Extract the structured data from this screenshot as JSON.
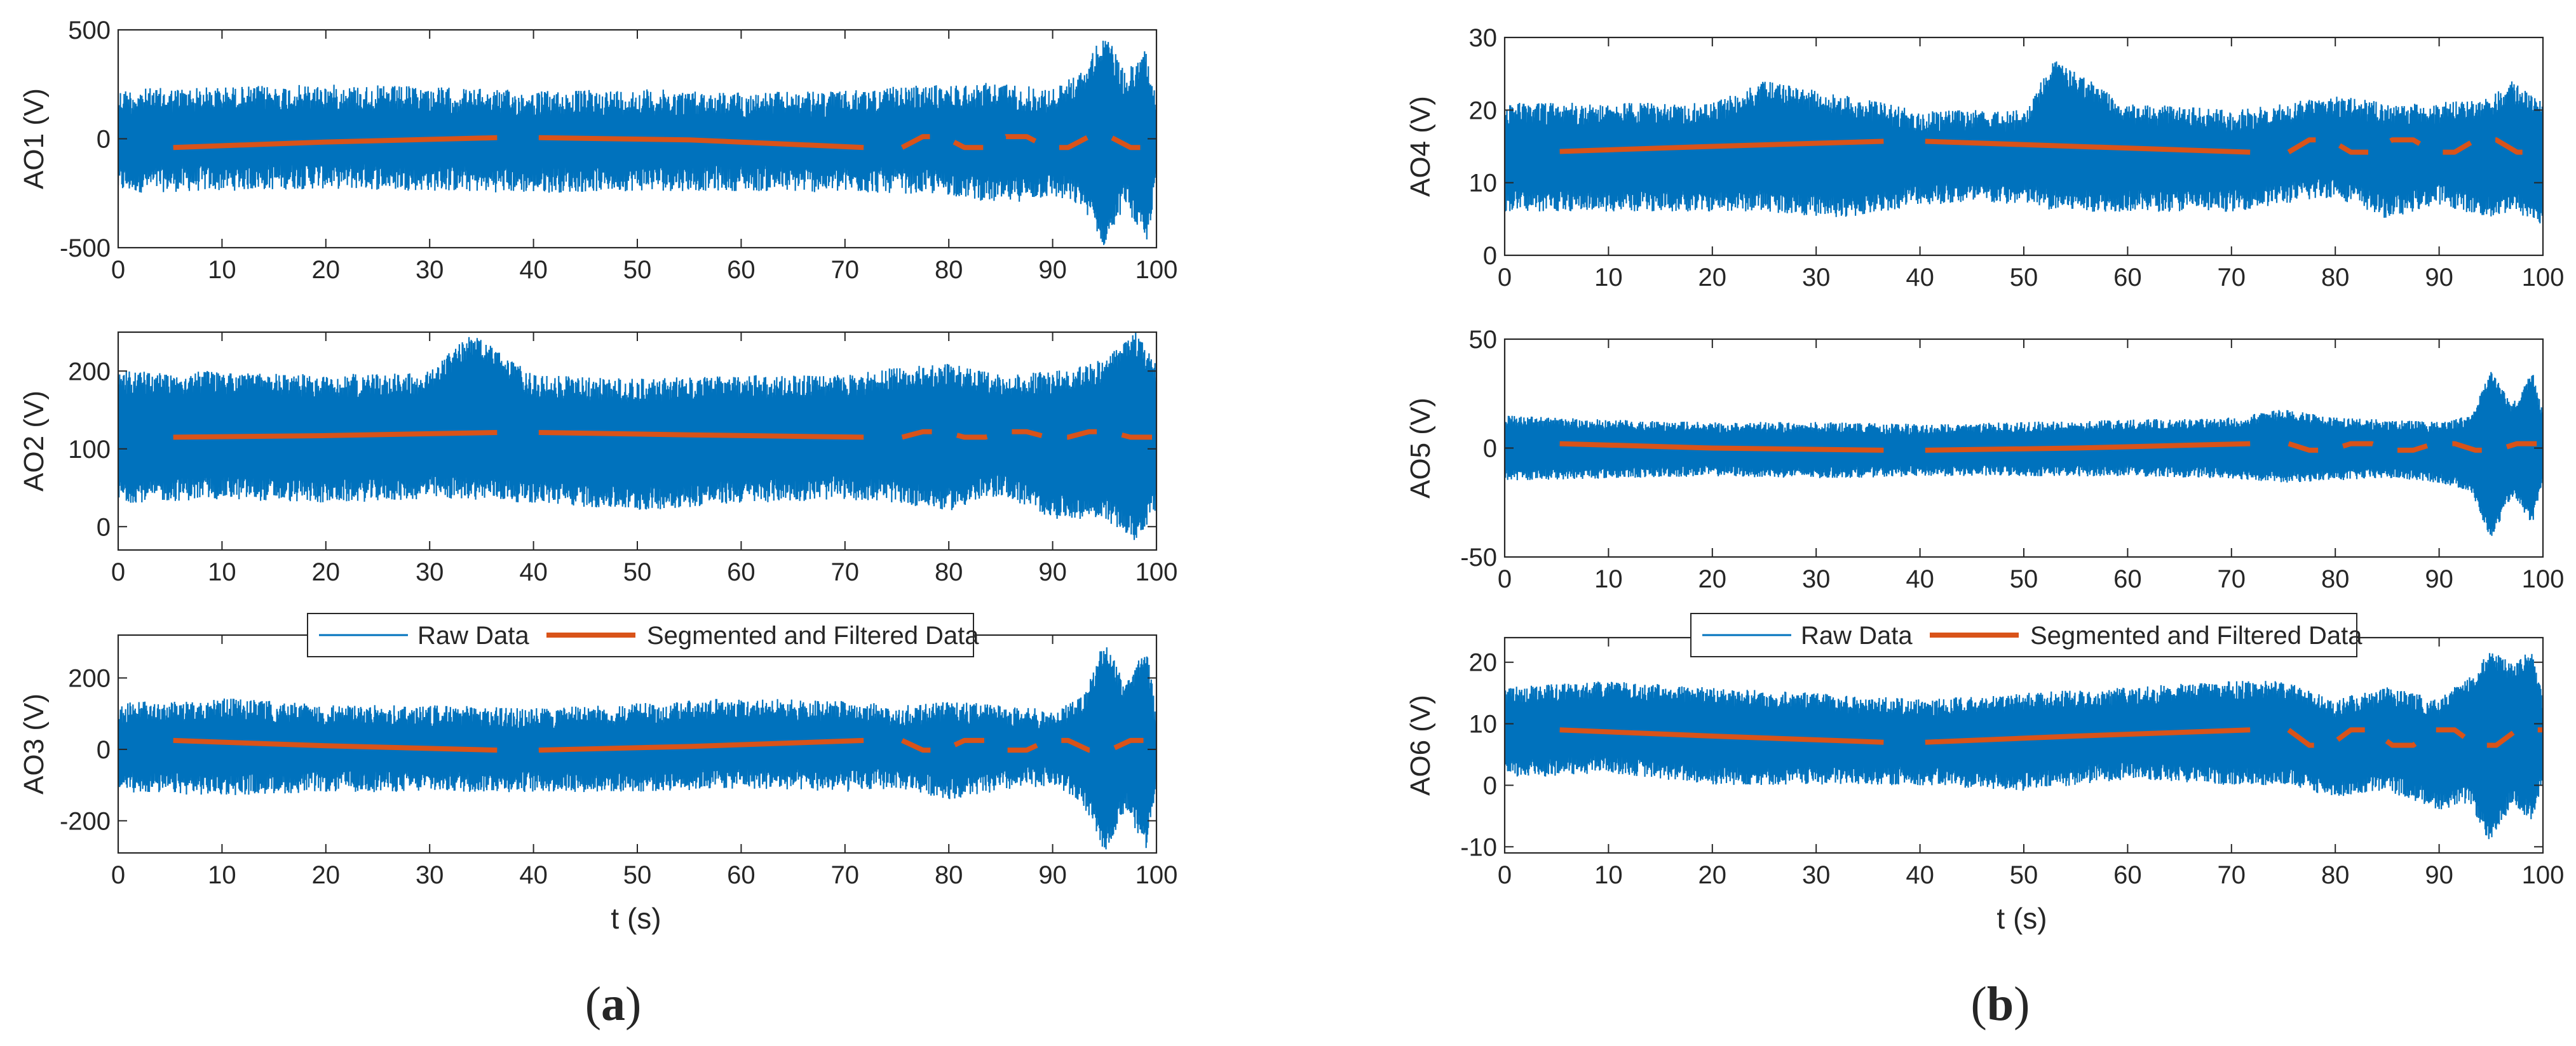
{
  "colors": {
    "raw": "#0072BD",
    "filtered": "#D95319",
    "axis": "#262626",
    "background": "#ffffff"
  },
  "figure": {
    "captions": [
      {
        "open": "(",
        "letter": "a",
        "close": ")"
      },
      {
        "open": "(",
        "letter": "b",
        "close": ")"
      }
    ]
  },
  "legend": {
    "raw_label": "Raw Data",
    "filtered_label": "Segmented and Filtered Data"
  },
  "xlabel": "t (s)",
  "chart_data": [
    {
      "type": "line",
      "ylabel": "AO1 (V)",
      "xlim": [
        0,
        100
      ],
      "ylim": [
        -500,
        500
      ],
      "xticks": [
        "0",
        "10",
        "20",
        "30",
        "40",
        "50",
        "60",
        "70",
        "80",
        "90",
        "100"
      ],
      "yticks": [
        "500",
        "0",
        "-500"
      ],
      "yticks_values": [
        500,
        0,
        -500
      ],
      "raw_envelope": {
        "x": [
          0,
          10,
          20,
          30,
          40,
          50,
          60,
          70,
          75,
          80,
          85,
          90,
          93,
          95,
          97,
          99,
          100
        ],
        "upper": [
          230,
          240,
          250,
          240,
          220,
          230,
          215,
          220,
          240,
          250,
          260,
          230,
          320,
          500,
          300,
          420,
          200
        ],
        "lower": [
          -250,
          -240,
          -230,
          -240,
          -250,
          -240,
          -240,
          -250,
          -250,
          -260,
          -300,
          -270,
          -320,
          -500,
          -300,
          -500,
          -220
        ],
        "noise": 60
      },
      "filtered_segments": [
        {
          "x": [
            5.3,
            20,
            36.5
          ],
          "y": [
            -40,
            -15,
            5
          ]
        },
        {
          "x": [
            40.5,
            55,
            71.8
          ],
          "y": [
            5,
            -5,
            -40
          ]
        },
        {
          "x": [
            75.5,
            77.5,
            79.5,
            81.5,
            83.5,
            85.5,
            87.5,
            89.5,
            91.5,
            93.5,
            95.5,
            97.5,
            99.5,
            100
          ],
          "y": [
            -40,
            10,
            10,
            -40,
            -40,
            10,
            10,
            -40,
            -40,
            10,
            10,
            -40,
            -40,
            -40
          ]
        }
      ]
    },
    {
      "type": "line",
      "ylabel": "AO2 (V)",
      "xlim": [
        0,
        100
      ],
      "ylim": [
        -30,
        250
      ],
      "xticks": [
        "0",
        "10",
        "20",
        "30",
        "40",
        "50",
        "60",
        "70",
        "80",
        "90",
        "100"
      ],
      "yticks": [
        "200",
        "100",
        "0"
      ],
      "yticks_values": [
        200,
        100,
        0
      ],
      "raw_envelope": {
        "x": [
          0,
          10,
          20,
          30,
          34,
          40,
          50,
          60,
          70,
          75,
          80,
          85,
          90,
          95,
          98,
          100
        ],
        "upper": [
          200,
          200,
          195,
          200,
          250,
          195,
          190,
          195,
          195,
          205,
          210,
          195,
          200,
          215,
          250,
          210
        ],
        "lower": [
          30,
          35,
          30,
          35,
          35,
          30,
          20,
          30,
          35,
          30,
          20,
          40,
          10,
          10,
          -20,
          20
        ],
        "noise": 15
      },
      "filtered_segments": [
        {
          "x": [
            5.3,
            20,
            36.5
          ],
          "y": [
            115,
            117,
            121
          ]
        },
        {
          "x": [
            40.5,
            55,
            71.8
          ],
          "y": [
            121,
            118,
            115
          ]
        },
        {
          "x": [
            75.5,
            77.5,
            79.5,
            81.5,
            83.5,
            85.5,
            87.5,
            89.5,
            91.5,
            93.5,
            95.5,
            97.5,
            99.5,
            100
          ],
          "y": [
            115,
            122,
            122,
            115,
            115,
            122,
            122,
            115,
            115,
            122,
            122,
            115,
            115,
            115
          ]
        }
      ]
    },
    {
      "type": "line",
      "ylabel": "AO3 (V)",
      "xlim": [
        0,
        100
      ],
      "ylim": [
        -290,
        320
      ],
      "xticks": [
        "0",
        "10",
        "20",
        "30",
        "40",
        "50",
        "60",
        "70",
        "80",
        "90",
        "100"
      ],
      "yticks": [
        "200",
        "0",
        "-200"
      ],
      "yticks_values": [
        200,
        0,
        -200
      ],
      "raw_envelope": {
        "x": [
          0,
          10,
          20,
          30,
          40,
          50,
          60,
          70,
          75,
          80,
          85,
          90,
          93,
          95,
          97,
          99,
          100
        ],
        "upper": [
          130,
          145,
          125,
          125,
          115,
          130,
          145,
          135,
          125,
          135,
          125,
          110,
          150,
          310,
          180,
          300,
          100
        ],
        "lower": [
          -120,
          -130,
          -120,
          -120,
          -120,
          -120,
          -110,
          -120,
          -110,
          -140,
          -120,
          -100,
          -160,
          -290,
          -170,
          -280,
          -100
        ],
        "noise": 30
      },
      "filtered_segments": [
        {
          "x": [
            5.3,
            20,
            36.5
          ],
          "y": [
            25,
            10,
            -2
          ]
        },
        {
          "x": [
            40.5,
            55,
            71.8
          ],
          "y": [
            -2,
            8,
            25
          ]
        },
        {
          "x": [
            75.5,
            77.5,
            79.5,
            81.5,
            83.5,
            85.5,
            87.5,
            89.5,
            91.5,
            93.5,
            95.5,
            97.5,
            99.5,
            100
          ],
          "y": [
            25,
            -2,
            -2,
            25,
            25,
            -2,
            -2,
            25,
            25,
            -2,
            -2,
            25,
            25,
            25
          ]
        }
      ]
    },
    {
      "type": "line",
      "ylabel": "AO4 (V)",
      "xlim": [
        0,
        100
      ],
      "ylim": [
        0,
        30
      ],
      "xticks": [
        "0",
        "10",
        "20",
        "30",
        "40",
        "50",
        "60",
        "70",
        "80",
        "90",
        "100"
      ],
      "yticks": [
        "30",
        "20",
        "10",
        "0"
      ],
      "yticks_values": [
        30,
        20,
        10,
        0
      ],
      "raw_envelope": {
        "x": [
          0,
          10,
          20,
          25,
          33,
          40,
          50,
          53,
          60,
          70,
          80,
          85,
          90,
          95,
          97,
          100
        ],
        "upper": [
          21,
          21,
          21,
          24,
          22,
          20,
          20,
          27,
          21,
          20,
          22,
          21,
          21,
          22,
          24,
          21
        ],
        "lower": [
          6,
          6,
          6,
          6,
          5,
          7,
          7,
          6,
          6,
          6,
          8,
          5,
          7,
          5,
          6,
          4
        ],
        "noise": 1.5
      },
      "filtered_segments": [
        {
          "x": [
            5.3,
            20,
            36.5
          ],
          "y": [
            14.3,
            15,
            15.7
          ]
        },
        {
          "x": [
            40.5,
            55,
            71.8
          ],
          "y": [
            15.7,
            15,
            14.2
          ]
        },
        {
          "x": [
            75.5,
            77.5,
            79.5,
            81.5,
            83.5,
            85.5,
            87.5,
            89.5,
            91.5,
            93.5,
            95.5,
            97.5,
            99.5,
            100
          ],
          "y": [
            14.2,
            15.9,
            15.9,
            14.2,
            14.2,
            15.9,
            15.9,
            14.2,
            14.2,
            15.9,
            15.9,
            14.2,
            14.2,
            14.2
          ]
        }
      ]
    },
    {
      "type": "line",
      "ylabel": "AO5 (V)",
      "xlim": [
        0,
        100
      ],
      "ylim": [
        -50,
        50
      ],
      "xticks": [
        "0",
        "10",
        "20",
        "30",
        "40",
        "50",
        "60",
        "70",
        "80",
        "90",
        "100"
      ],
      "yticks": [
        "50",
        "0",
        "-50"
      ],
      "yticks_values": [
        50,
        0,
        -50
      ],
      "raw_envelope": {
        "x": [
          0,
          10,
          20,
          30,
          40,
          50,
          60,
          70,
          75,
          80,
          85,
          90,
          93,
          95,
          97,
          99,
          100
        ],
        "upper": [
          15,
          13,
          12,
          12,
          11,
          12,
          13,
          14,
          18,
          14,
          13,
          12,
          15,
          36,
          20,
          35,
          16
        ],
        "lower": [
          -15,
          -14,
          -13,
          -14,
          -13,
          -13,
          -13,
          -14,
          -16,
          -15,
          -14,
          -16,
          -20,
          -42,
          -22,
          -35,
          -15
        ],
        "noise": 2.5
      },
      "filtered_segments": [
        {
          "x": [
            5.3,
            20,
            36.5
          ],
          "y": [
            2,
            0,
            -1
          ]
        },
        {
          "x": [
            40.5,
            55,
            71.8
          ],
          "y": [
            -1,
            0,
            2
          ]
        },
        {
          "x": [
            75.5,
            77.5,
            79.5,
            81.5,
            83.5,
            85.5,
            87.5,
            89.5,
            91.5,
            93.5,
            95.5,
            97.5,
            99.5,
            100
          ],
          "y": [
            2,
            -1,
            -1,
            2,
            2,
            -1,
            -1,
            2,
            2,
            -1,
            -1,
            2,
            2,
            2
          ]
        }
      ]
    },
    {
      "type": "line",
      "ylabel": "AO6 (V)",
      "xlim": [
        0,
        100
      ],
      "ylim": [
        -11,
        24
      ],
      "xticks": [
        "0",
        "10",
        "20",
        "30",
        "40",
        "50",
        "60",
        "70",
        "80",
        "90",
        "100"
      ],
      "yticks": [
        "20",
        "10",
        "0",
        "-10"
      ],
      "yticks_values": [
        20,
        10,
        0,
        -10
      ],
      "raw_envelope": {
        "x": [
          0,
          10,
          20,
          30,
          40,
          50,
          60,
          70,
          75,
          80,
          85,
          90,
          93,
          95,
          97,
          99,
          100
        ],
        "upper": [
          16,
          17,
          16,
          15,
          14,
          15,
          16,
          17,
          17,
          14,
          16,
          14,
          18,
          22,
          20,
          22,
          15
        ],
        "lower": [
          1,
          2,
          0,
          0,
          0,
          -1,
          1,
          0,
          0,
          -2,
          -1,
          -4,
          -3,
          -10,
          -3,
          -6,
          0
        ],
        "noise": 1.5
      },
      "filtered_segments": [
        {
          "x": [
            5.3,
            20,
            36.5
          ],
          "y": [
            9,
            8,
            7
          ]
        },
        {
          "x": [
            40.5,
            55,
            71.8
          ],
          "y": [
            7,
            8,
            9
          ]
        },
        {
          "x": [
            75.5,
            77.5,
            79.5,
            81.5,
            83.5,
            85.5,
            87.5,
            89.5,
            91.5,
            93.5,
            95.5,
            97.5,
            99.5,
            100
          ],
          "y": [
            9,
            6.5,
            6.5,
            9,
            9,
            6.5,
            6.5,
            9,
            9,
            6.5,
            6.5,
            9,
            9,
            9
          ]
        }
      ]
    }
  ]
}
